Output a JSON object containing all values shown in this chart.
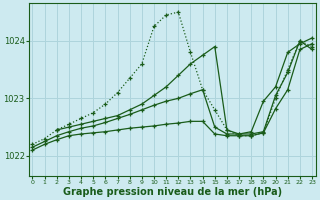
{
  "background_color": "#cdeaf0",
  "grid_color": "#aed4dc",
  "line_color": "#1a5c1a",
  "xlabel": "Graphe pression niveau de la mer (hPa)",
  "xlabel_fontsize": 7,
  "xticks": [
    0,
    1,
    2,
    3,
    4,
    5,
    6,
    7,
    8,
    9,
    10,
    11,
    12,
    13,
    14,
    15,
    16,
    17,
    18,
    19,
    20,
    21,
    22,
    23
  ],
  "yticks": [
    1022,
    1023,
    1024
  ],
  "ylim": [
    1021.65,
    1024.65
  ],
  "xlim": [
    -0.3,
    23.3
  ],
  "series": [
    {
      "x": [
        0,
        1,
        2,
        3,
        4,
        5,
        6,
        7,
        8,
        9,
        10,
        11,
        12,
        13,
        14,
        15,
        16,
        17,
        18,
        19,
        20,
        21,
        22,
        23
      ],
      "y": [
        1022.2,
        1022.3,
        1022.45,
        1022.55,
        1022.65,
        1022.75,
        1022.9,
        1023.1,
        1023.35,
        1023.6,
        1024.25,
        1024.45,
        1024.5,
        1023.8,
        1023.15,
        1022.8,
        1022.45,
        1022.35,
        1022.35,
        1022.4,
        1023.0,
        1023.5,
        1024.0,
        1023.9
      ],
      "linestyle": "dotted",
      "marker": "+"
    },
    {
      "x": [
        2,
        3,
        4,
        5,
        6,
        7,
        8,
        9,
        10,
        11,
        12,
        13,
        14,
        15,
        16,
        17,
        18,
        19,
        20,
        21,
        22,
        23
      ],
      "y": [
        1022.45,
        1022.5,
        1022.55,
        1022.6,
        1022.65,
        1022.7,
        1022.8,
        1022.9,
        1023.05,
        1023.2,
        1023.4,
        1023.6,
        1023.75,
        1023.9,
        1022.45,
        1022.38,
        1022.38,
        1022.42,
        1023.05,
        1023.45,
        1024.0,
        1023.85
      ],
      "linestyle": "solid",
      "marker": "+"
    },
    {
      "x": [
        0,
        1,
        2,
        3,
        4,
        5,
        6,
        7,
        8,
        9,
        10,
        11,
        12,
        13,
        14,
        15,
        16,
        17,
        18,
        19,
        20,
        21,
        22,
        23
      ],
      "y": [
        1022.15,
        1022.25,
        1022.35,
        1022.42,
        1022.48,
        1022.52,
        1022.58,
        1022.65,
        1022.72,
        1022.8,
        1022.88,
        1022.95,
        1023.0,
        1023.08,
        1023.15,
        1022.5,
        1022.38,
        1022.38,
        1022.42,
        1022.95,
        1023.2,
        1023.8,
        1023.95,
        1024.05
      ],
      "linestyle": "solid",
      "marker": "+"
    },
    {
      "x": [
        0,
        1,
        2,
        3,
        4,
        5,
        6,
        7,
        8,
        9,
        10,
        11,
        12,
        13,
        14,
        15,
        16,
        17,
        18,
        19,
        20,
        21,
        22,
        23
      ],
      "y": [
        1022.1,
        1022.2,
        1022.28,
        1022.35,
        1022.38,
        1022.4,
        1022.42,
        1022.45,
        1022.48,
        1022.5,
        1022.52,
        1022.55,
        1022.57,
        1022.6,
        1022.6,
        1022.38,
        1022.35,
        1022.35,
        1022.35,
        1022.4,
        1022.82,
        1023.15,
        1023.85,
        1023.95
      ],
      "linestyle": "solid",
      "marker": "+"
    }
  ]
}
